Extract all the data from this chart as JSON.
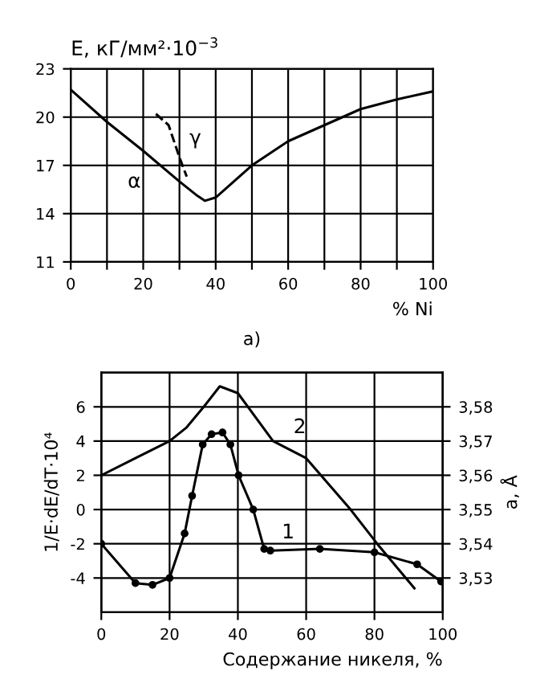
{
  "chart_data": [
    {
      "type": "line",
      "title": "E, кГ/мм²·10$^{−3}$",
      "xlabel": "% Ni",
      "xlim": [
        0,
        100
      ],
      "ylim": [
        11,
        23
      ],
      "xticks": [
        0,
        {
          "value": 10,
          "label": null
        },
        20,
        {
          "value": 30,
          "label": null
        },
        40,
        {
          "value": 50,
          "label": null
        },
        60,
        {
          "value": 70,
          "label": null
        },
        80,
        {
          "value": 90,
          "label": null
        },
        100
      ],
      "yticks": [
        11,
        14,
        17,
        20,
        23
      ],
      "grid": true,
      "series": [
        {
          "name": "α",
          "color": "#000000",
          "x": [
            0,
            10,
            20,
            30,
            35,
            37,
            40,
            50,
            60,
            70,
            80,
            90,
            100
          ],
          "values": [
            21.7,
            19.7,
            17.9,
            16.0,
            15.1,
            14.8,
            15.0,
            17.0,
            18.5,
            19.5,
            20.5,
            21.1,
            21.6
          ]
        },
        {
          "name": "γ",
          "color": "#000000",
          "line_style": "dashed",
          "x": [
            23.5,
            27,
            30,
            32
          ],
          "values": [
            20.2,
            19.5,
            17.5,
            16.3
          ]
        }
      ],
      "annotations": [
        "а)"
      ]
    },
    {
      "type": "line",
      "xlabel": "Содержание никеля, %",
      "ylabel": "1/E·dE/dT·10⁴",
      "y2label": "a, Å",
      "xlim": [
        0,
        100
      ],
      "ylim": [
        -6,
        8
      ],
      "xticks": [
        0,
        20,
        40,
        60,
        80,
        100
      ],
      "yticks": [
        -4,
        -2,
        0,
        2,
        4,
        6
      ],
      "y2lim": [
        3.52,
        3.59
      ],
      "y2ticks": [
        {
          "value": 3.53,
          "label": "3,53"
        },
        {
          "value": 3.54,
          "label": "3,54"
        },
        {
          "value": 3.55,
          "label": "3,55"
        },
        {
          "value": 3.56,
          "label": "3,56"
        },
        {
          "value": 3.57,
          "label": "3,57"
        },
        {
          "value": 3.58,
          "label": "3,58"
        }
      ],
      "grid": true,
      "series": [
        {
          "name": "1",
          "color": "#000000",
          "marker": "circle",
          "x": [
            0,
            10,
            15,
            20,
            24.4,
            26.6,
            29.7,
            32.3,
            35.5,
            37.8,
            40.2,
            44.5,
            47.7,
            49.5,
            64,
            80,
            92.5,
            99.5
          ],
          "values": [
            -2,
            -4.3,
            -4.4,
            -4.0,
            -1.4,
            0.8,
            3.8,
            4.4,
            4.5,
            3.8,
            2.0,
            0,
            -2.3,
            -2.4,
            -2.3,
            -2.5,
            -3.2,
            -4.2
          ]
        },
        {
          "name": "2",
          "color": "#000000",
          "axis": "y2",
          "x": [
            0,
            10,
            20,
            25,
            30,
            34.7,
            40,
            50.3,
            60,
            73,
            80.8,
            91.7
          ],
          "values": [
            3.56,
            3.565,
            3.57,
            3.574,
            3.58,
            3.586,
            3.584,
            3.57,
            3.565,
            3.55,
            3.54,
            3.527
          ]
        }
      ]
    }
  ]
}
